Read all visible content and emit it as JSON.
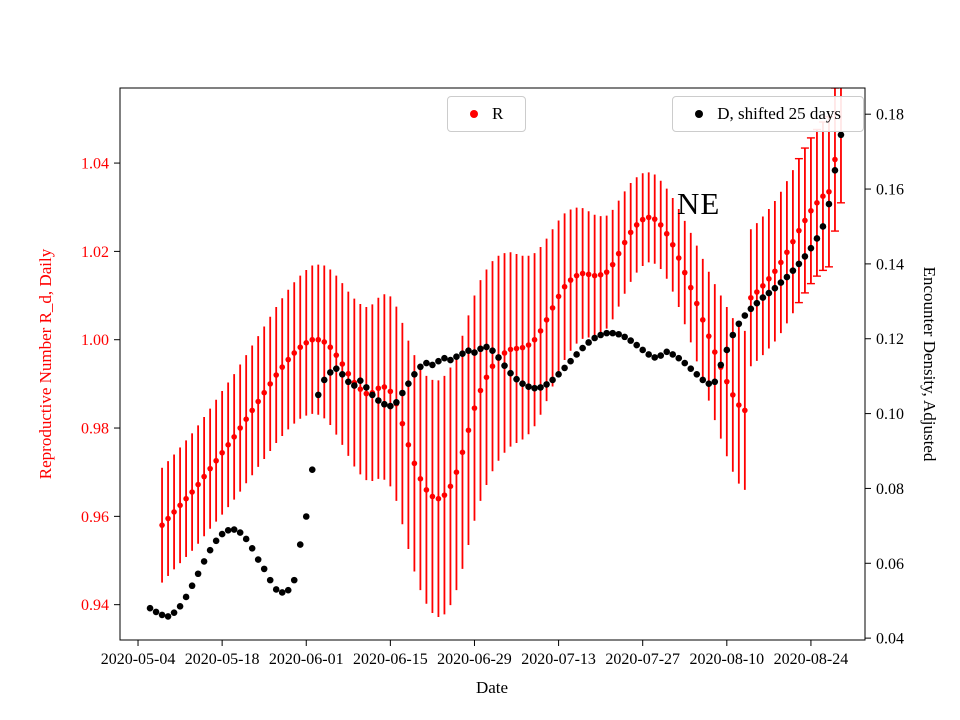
{
  "chart_data": {
    "type": "scatter",
    "title": "",
    "grid": false,
    "xlabel": "Date",
    "x_start_date": "2020-05-04",
    "x_axis": {
      "tick_days": [
        0,
        14,
        28,
        42,
        56,
        70,
        84,
        98,
        112
      ],
      "tick_labels": [
        "2020-05-04",
        "2020-05-18",
        "2020-06-01",
        "2020-06-15",
        "2020-06-29",
        "2020-07-13",
        "2020-07-27",
        "2020-08-10",
        "2020-08-24"
      ],
      "range_days": [
        -3,
        121
      ]
    },
    "left_axis": {
      "label": "Reproductive Number R_d, Daily",
      "color": "#ff0000",
      "ticks": [
        0.94,
        0.96,
        0.98,
        1.0,
        1.02,
        1.04
      ],
      "range": [
        0.932,
        1.057
      ]
    },
    "right_axis": {
      "label": "Encounter Density, Adjusted",
      "color": "#000000",
      "ticks": [
        0.04,
        0.06,
        0.08,
        0.1,
        0.12,
        0.14,
        0.16,
        0.18
      ],
      "range": [
        0.0395,
        0.187
      ]
    },
    "annotations": [
      {
        "text": "NE",
        "x_day": 90,
        "y_left": 1.031
      }
    ],
    "legend": [
      {
        "label": "R",
        "color": "#ff0000",
        "position": "upper center"
      },
      {
        "label": "D, shifted 25 days",
        "color": "#000000",
        "position": "upper right"
      }
    ],
    "series": [
      {
        "name": "R",
        "axis": "left",
        "color": "#ff0000",
        "marker": "circle",
        "has_error_bars": true,
        "cap_from_day": 110,
        "start_day": 4,
        "values": [
          0.958,
          0.9595,
          0.961,
          0.9625,
          0.964,
          0.9655,
          0.9672,
          0.969,
          0.9708,
          0.9726,
          0.9744,
          0.9762,
          0.978,
          0.98,
          0.982,
          0.984,
          0.986,
          0.988,
          0.99,
          0.992,
          0.9938,
          0.9955,
          0.997,
          0.9983,
          0.9993,
          1.0,
          1.0,
          0.9995,
          0.9983,
          0.9965,
          0.9945,
          0.9923,
          0.9903,
          0.9888,
          0.9878,
          0.988,
          0.989,
          0.9893,
          0.9883,
          0.9855,
          0.981,
          0.9762,
          0.972,
          0.9685,
          0.966,
          0.9645,
          0.964,
          0.9648,
          0.9668,
          0.97,
          0.9745,
          0.9795,
          0.9845,
          0.9885,
          0.9915,
          0.994,
          0.9958,
          0.997,
          0.9978,
          0.998,
          0.9982,
          0.9988,
          1.0,
          1.002,
          1.0045,
          1.0072,
          1.0098,
          1.012,
          1.0135,
          1.0145,
          1.015,
          1.0148,
          1.0145,
          1.0147,
          1.0153,
          1.017,
          1.0195,
          1.022,
          1.0243,
          1.026,
          1.0272,
          1.0277,
          1.0273,
          1.026,
          1.024,
          1.0215,
          1.0185,
          1.0152,
          1.0118,
          1.0082,
          1.0045,
          1.0008,
          0.9972,
          0.9938,
          0.9905,
          0.9875,
          0.9852,
          0.984,
          1.0095,
          1.0108,
          1.0122,
          1.0138,
          1.0155,
          1.0175,
          1.0198,
          1.0222,
          1.0247,
          1.027,
          1.0292,
          1.031,
          1.0325,
          1.0335,
          1.0408,
          1.0465
        ],
        "errors": [
          0.013,
          0.013,
          0.013,
          0.0131,
          0.0132,
          0.0133,
          0.0134,
          0.0135,
          0.0136,
          0.0138,
          0.014,
          0.0141,
          0.0142,
          0.0144,
          0.0145,
          0.0147,
          0.0148,
          0.015,
          0.0152,
          0.0154,
          0.0156,
          0.0158,
          0.016,
          0.0162,
          0.0165,
          0.0168,
          0.017,
          0.0173,
          0.0176,
          0.018,
          0.0183,
          0.0186,
          0.019,
          0.0193,
          0.0196,
          0.02,
          0.0205,
          0.021,
          0.0215,
          0.022,
          0.0228,
          0.0236,
          0.0245,
          0.0252,
          0.0258,
          0.0264,
          0.0268,
          0.027,
          0.0269,
          0.0267,
          0.0264,
          0.026,
          0.0255,
          0.025,
          0.0244,
          0.0238,
          0.0232,
          0.0226,
          0.022,
          0.0214,
          0.0208,
          0.0202,
          0.0196,
          0.019,
          0.0184,
          0.0178,
          0.0172,
          0.0166,
          0.016,
          0.0154,
          0.0148,
          0.0143,
          0.0138,
          0.0133,
          0.0128,
          0.0124,
          0.012,
          0.0116,
          0.0112,
          0.0108,
          0.0105,
          0.0102,
          0.0101,
          0.01,
          0.0102,
          0.0106,
          0.0111,
          0.0117,
          0.0124,
          0.0131,
          0.0138,
          0.0146,
          0.0154,
          0.0162,
          0.0169,
          0.0174,
          0.0178,
          0.018,
          0.0155,
          0.0156,
          0.0157,
          0.0158,
          0.0159,
          0.016,
          0.0161,
          0.0162,
          0.0163,
          0.0164,
          0.0165,
          0.0166,
          0.0168,
          0.017,
          0.0162,
          0.0155
        ]
      },
      {
        "name": "D, shifted 25 days",
        "axis": "right",
        "color": "#000000",
        "marker": "circle",
        "has_error_bars": false,
        "start_day": 2,
        "values": [
          0.048,
          0.047,
          0.0462,
          0.0458,
          0.0468,
          0.0485,
          0.051,
          0.054,
          0.0572,
          0.0605,
          0.0635,
          0.066,
          0.0678,
          0.0688,
          0.069,
          0.0682,
          0.0665,
          0.064,
          0.061,
          0.0585,
          0.0555,
          0.053,
          0.0522,
          0.0528,
          0.0555,
          0.065,
          0.0725,
          0.085,
          0.105,
          0.109,
          0.111,
          0.112,
          0.1105,
          0.1085,
          0.1075,
          0.1088,
          0.107,
          0.105,
          0.1035,
          0.1025,
          0.102,
          0.103,
          0.1055,
          0.108,
          0.1105,
          0.1125,
          0.1135,
          0.113,
          0.114,
          0.1148,
          0.1143,
          0.1152,
          0.116,
          0.1168,
          0.1163,
          0.1173,
          0.1178,
          0.1168,
          0.115,
          0.1128,
          0.1108,
          0.1092,
          0.108,
          0.1072,
          0.1068,
          0.107,
          0.1078,
          0.109,
          0.1105,
          0.1122,
          0.114,
          0.1158,
          0.1175,
          0.119,
          0.1202,
          0.121,
          0.1215,
          0.1215,
          0.1212,
          0.1205,
          0.1195,
          0.1183,
          0.117,
          0.1158,
          0.115,
          0.1155,
          0.1165,
          0.1158,
          0.1148,
          0.1135,
          0.112,
          0.1105,
          0.109,
          0.108,
          0.1085,
          0.113,
          0.117,
          0.121,
          0.124,
          0.1262,
          0.128,
          0.1295,
          0.131,
          0.1322,
          0.1335,
          0.135,
          0.1365,
          0.1382,
          0.14,
          0.142,
          0.1442,
          0.1468,
          0.15,
          0.156,
          0.165,
          0.1745
        ]
      }
    ]
  }
}
